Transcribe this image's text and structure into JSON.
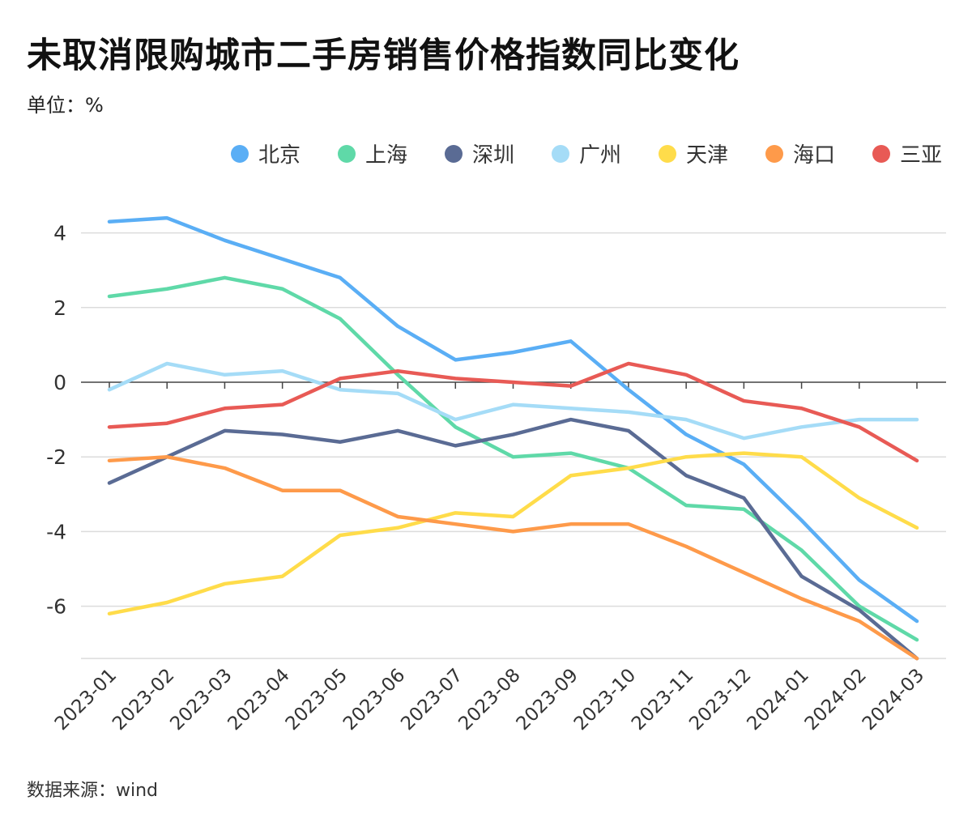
{
  "title": "未取消限购城市二手房销售价格指数同比变化",
  "unit": "单位：%",
  "source": "数据来源：wind",
  "chart_data": {
    "type": "line",
    "title": "未取消限购城市二手房销售价格指数同比变化",
    "ylabel": "单位：%",
    "xlabel": "",
    "ylim": [
      -7.4,
      4.4
    ],
    "yticks": [
      4,
      2,
      0,
      -2,
      -4,
      -6
    ],
    "grid": true,
    "legend": "top-right",
    "categories": [
      "2023-01",
      "2023-02",
      "2023-03",
      "2023-04",
      "2023-05",
      "2023-06",
      "2023-07",
      "2023-08",
      "2023-09",
      "2023-10",
      "2023-11",
      "2023-12",
      "2024-01",
      "2024-02",
      "2024-03"
    ],
    "series": [
      {
        "name": "北京",
        "color": "#5aaef5",
        "values": [
          4.3,
          4.4,
          3.8,
          3.3,
          2.8,
          1.5,
          0.6,
          0.8,
          1.1,
          -0.2,
          -1.4,
          -2.2,
          -3.7,
          -5.3,
          -6.4
        ]
      },
      {
        "name": "上海",
        "color": "#5fd9a8",
        "values": [
          2.3,
          2.5,
          2.8,
          2.5,
          1.7,
          0.2,
          -1.2,
          -2.0,
          -1.9,
          -2.3,
          -3.3,
          -3.4,
          -4.5,
          -6.0,
          -6.9
        ]
      },
      {
        "name": "深圳",
        "color": "#5a6b94",
        "values": [
          -2.7,
          -2.0,
          -1.3,
          -1.4,
          -1.6,
          -1.3,
          -1.7,
          -1.4,
          -1.0,
          -1.3,
          -2.5,
          -3.1,
          -5.2,
          -6.1,
          -7.4
        ]
      },
      {
        "name": "广州",
        "color": "#a5dcf7",
        "values": [
          -0.2,
          0.5,
          0.2,
          0.3,
          -0.2,
          -0.3,
          -1.0,
          -0.6,
          -0.7,
          -0.8,
          -1.0,
          -1.5,
          -1.2,
          -1.0,
          -1.0
        ]
      },
      {
        "name": "天津",
        "color": "#ffdc4a",
        "values": [
          -6.2,
          -5.9,
          -5.4,
          -5.2,
          -4.1,
          -3.9,
          -3.5,
          -3.6,
          -2.5,
          -2.3,
          -2.0,
          -1.9,
          -2.0,
          -3.1,
          -3.9
        ]
      },
      {
        "name": "海口",
        "color": "#fe9a4a",
        "values": [
          -2.1,
          -2.0,
          -2.3,
          -2.9,
          -2.9,
          -3.6,
          -3.8,
          -4.0,
          -3.8,
          -3.8,
          -4.4,
          -5.1,
          -5.8,
          -6.4,
          -7.4
        ]
      },
      {
        "name": "三亚",
        "color": "#e85a55",
        "values": [
          -1.2,
          -1.1,
          -0.7,
          -0.6,
          0.1,
          0.3,
          0.1,
          0.0,
          -0.1,
          0.5,
          0.2,
          -0.5,
          -0.7,
          -1.2,
          -2.1
        ]
      }
    ]
  }
}
